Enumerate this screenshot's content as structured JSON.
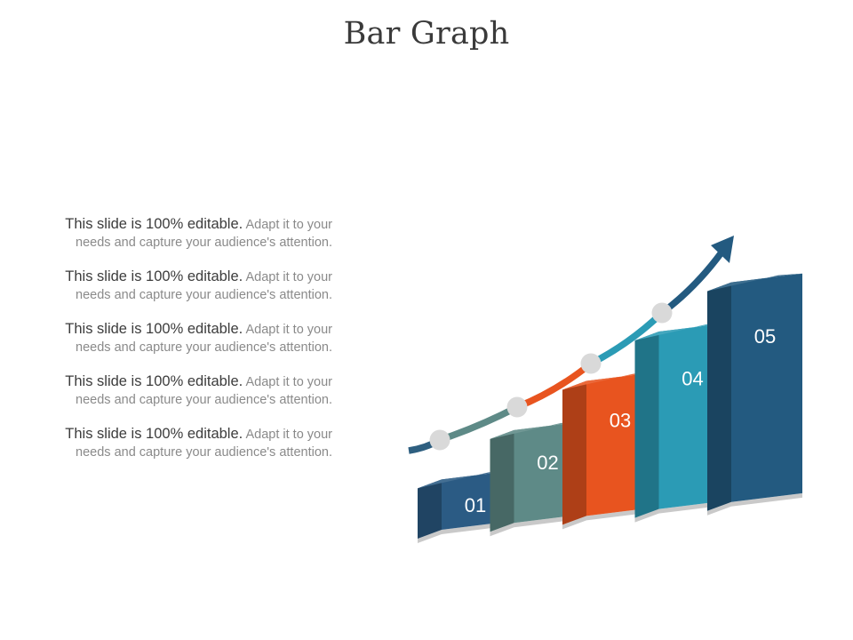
{
  "slide": {
    "title": "Bar Graph"
  },
  "text_blocks": [
    {
      "lead": "This slide is 100% editable.",
      "rest": " Adapt it to your needs and capture your audience's attention."
    },
    {
      "lead": "This slide is 100% editable.",
      "rest": " Adapt it to your needs and capture your audience's attention."
    },
    {
      "lead": "This slide is 100% editable.",
      "rest": " Adapt it to your needs and capture your audience's attention."
    },
    {
      "lead": "This slide is 100% editable.",
      "rest": " Adapt it to your needs and capture your audience's attention."
    },
    {
      "lead": "This slide is 100% editable.",
      "rest": " Adapt it to your needs and capture your audience's attention."
    }
  ],
  "chart_data": {
    "type": "bar",
    "style": "3d-staircase",
    "title": "Bar Graph",
    "categories": [
      "01",
      "02",
      "03",
      "04",
      "05"
    ],
    "values": [
      1,
      2,
      3,
      4,
      5
    ],
    "colors": [
      "#2b5b84",
      "#5e8a87",
      "#e8541f",
      "#2b9bb5",
      "#235a80"
    ],
    "trend_arrow": {
      "segment_colors": [
        "#2e5f80",
        "#5e8a87",
        "#e8541f",
        "#2b9bb5",
        "#235a80"
      ],
      "marker_color": "#d9d9d9"
    }
  }
}
